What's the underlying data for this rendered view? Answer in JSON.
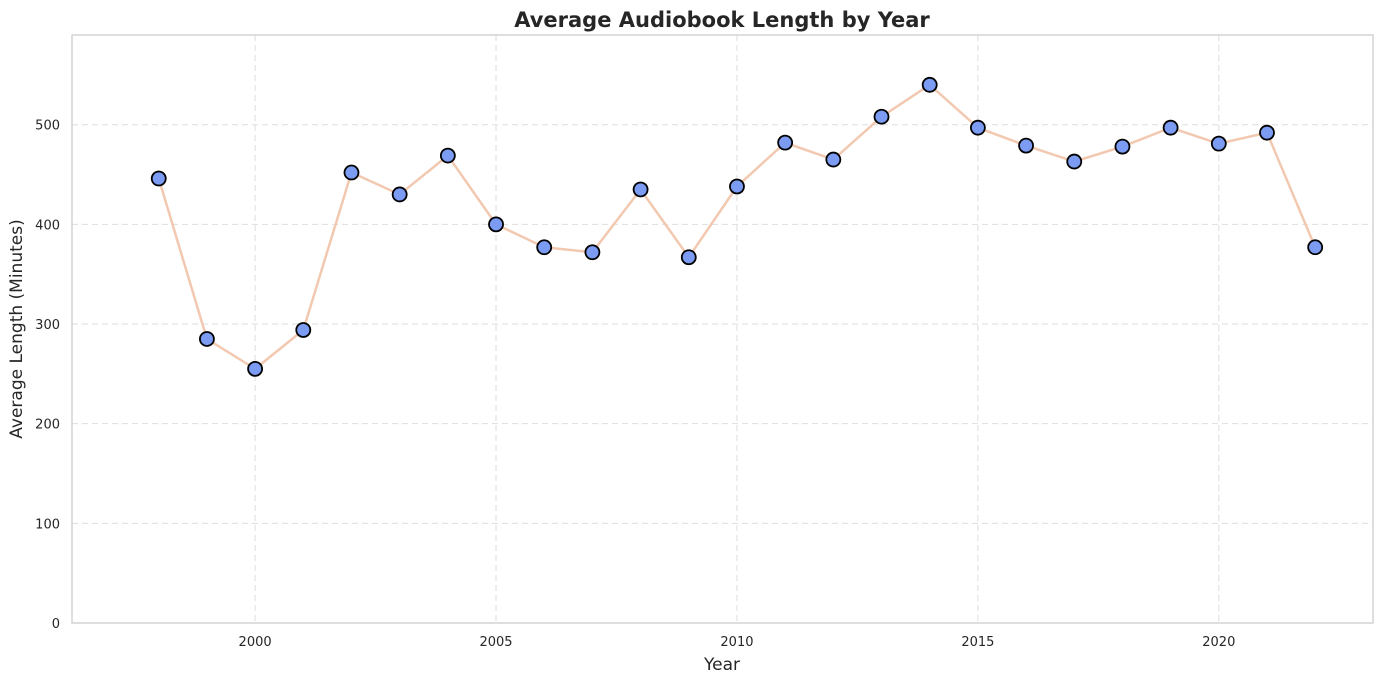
{
  "chart_data": {
    "type": "line",
    "title": "Average Audiobook Length by Year",
    "xlabel": "Year",
    "ylabel": "Average Length (Minutes)",
    "xlim": [
      1996.2,
      2023.2
    ],
    "ylim": [
      0,
      590
    ],
    "xticks": [
      2000,
      2005,
      2010,
      2015,
      2020
    ],
    "yticks": [
      0,
      100,
      200,
      300,
      400,
      500
    ],
    "grid": true,
    "legend": "none",
    "line_color": "#f2c9b0",
    "marker_face": "#7b9cf2",
    "marker_edge": "#000000",
    "series": [
      {
        "x": [
          1998,
          1999,
          2000,
          2001,
          2002,
          2003,
          2004,
          2005,
          2006,
          2007,
          2008,
          2009,
          2010,
          2011,
          2012,
          2013,
          2014,
          2015,
          2016,
          2017,
          2018,
          2019,
          2020,
          2021,
          2022
        ],
        "values": [
          446,
          285,
          255,
          294,
          452,
          430,
          469,
          400,
          377,
          372,
          435,
          367,
          438,
          482,
          465,
          508,
          540,
          497,
          479,
          463,
          478,
          497,
          481,
          492,
          377
        ]
      }
    ]
  }
}
